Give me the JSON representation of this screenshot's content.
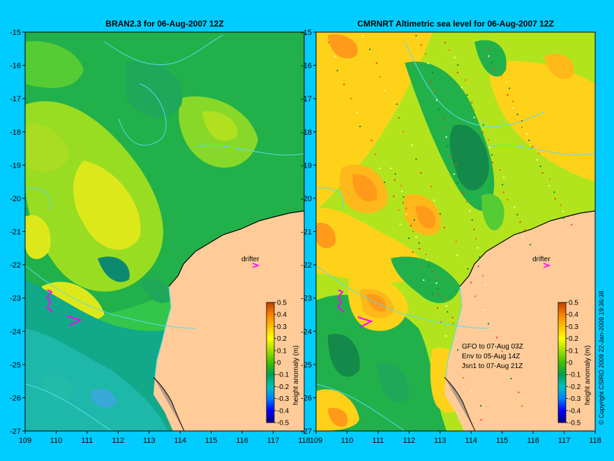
{
  "panels": [
    {
      "id": "left",
      "title": "BRAN2.3 for 06-Aug-2007 12Z",
      "drifter_label": "drifter",
      "notes": []
    },
    {
      "id": "right",
      "title": "CMRNRT Altimetric sea level  for 06-Aug-2007 12Z",
      "drifter_label": "drifter",
      "notes": [
        "GFO to 07-Aug 03Z",
        "Env to 05-Aug 14Z",
        "Jsn1 to 07-Aug 21Z"
      ]
    }
  ],
  "axes": {
    "x_ticks": [
      "109",
      "110",
      "111",
      "112",
      "113",
      "114",
      "115",
      "116",
      "117",
      "118"
    ],
    "y_ticks": [
      "-15",
      "-16",
      "-17",
      "-18",
      "-19",
      "-20",
      "-21",
      "-22",
      "-23",
      "-24",
      "-25",
      "-26",
      "-27"
    ],
    "lon_range": [
      109,
      118
    ],
    "lat_range": [
      -27,
      -15
    ]
  },
  "colorbar": {
    "label": "height anomaly (m)",
    "ticks": [
      "0.5",
      "0.4",
      "0.3",
      "0.2",
      "0.1",
      "0",
      "-0.1",
      "-0.2",
      "-0.3",
      "-0.4",
      "-0.5"
    ],
    "range": [
      -0.5,
      0.5
    ],
    "colors": [
      "#000080",
      "#0000ff",
      "#0080ff",
      "#00c0c0",
      "#00b060",
      "#40c000",
      "#a0e000",
      "#ffff00",
      "#ffc000",
      "#ff8000",
      "#c04000"
    ]
  },
  "copyright": "© Copyright CSIRO 2009   22-Jan-2009 19:36:38",
  "colors": {
    "background": "#00ccff",
    "land": "#ffcc99",
    "coastline": "#000000",
    "bathymetry": "#55ddee",
    "drifter": "#ff00ff"
  }
}
